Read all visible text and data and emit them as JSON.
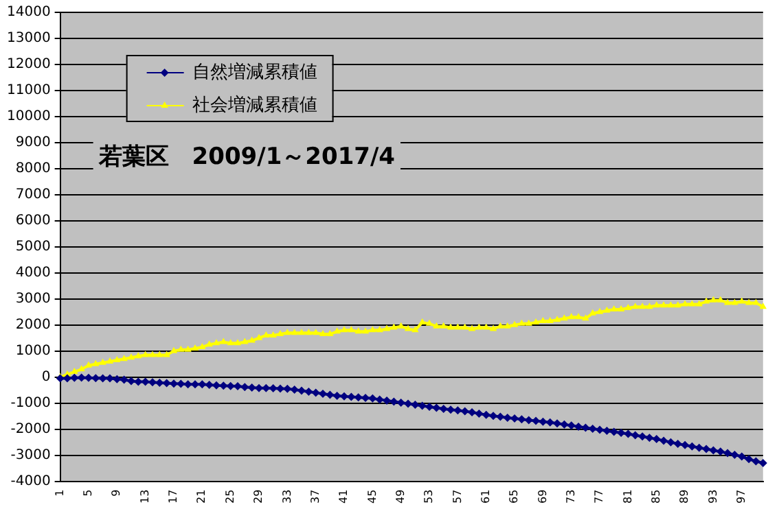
{
  "chart_data": {
    "type": "line",
    "annotations": [
      "若葉区　2009/1～2017/4"
    ],
    "categories": [
      "1",
      null,
      null,
      null,
      "5",
      null,
      null,
      null,
      "9",
      null,
      null,
      null,
      "13",
      null,
      null,
      null,
      "17",
      null,
      null,
      null,
      "21",
      null,
      null,
      null,
      "25",
      null,
      null,
      null,
      "29",
      null,
      null,
      null,
      "33",
      null,
      null,
      null,
      "37",
      null,
      null,
      null,
      "41",
      null,
      null,
      null,
      "45",
      null,
      null,
      null,
      "49",
      null,
      null,
      null,
      "53",
      null,
      null,
      null,
      "57",
      null,
      null,
      null,
      "61",
      null,
      null,
      null,
      "65",
      null,
      null,
      null,
      "69",
      null,
      null,
      null,
      "73",
      null,
      null,
      null,
      "77",
      null,
      null,
      null,
      "81",
      null,
      null,
      null,
      "85",
      null,
      null,
      null,
      "89",
      null,
      null,
      null,
      "93",
      null,
      null,
      null,
      "97",
      null,
      null,
      null
    ],
    "series": [
      {
        "name": "自然増減累積値",
        "color": "#000080",
        "marker": "diamond",
        "values": [
          -50,
          -50,
          -30,
          -20,
          -30,
          -40,
          -50,
          -50,
          -80,
          -100,
          -150,
          -180,
          -180,
          -200,
          -220,
          -230,
          -250,
          -260,
          -280,
          -280,
          -280,
          -300,
          -320,
          -330,
          -340,
          -350,
          -380,
          -400,
          -420,
          -420,
          -430,
          -440,
          -450,
          -480,
          -520,
          -560,
          -600,
          -640,
          -680,
          -720,
          -740,
          -760,
          -780,
          -800,
          -820,
          -860,
          -900,
          -940,
          -980,
          -1020,
          -1060,
          -1100,
          -1140,
          -1180,
          -1220,
          -1250,
          -1280,
          -1310,
          -1350,
          -1400,
          -1450,
          -1490,
          -1520,
          -1560,
          -1590,
          -1620,
          -1650,
          -1680,
          -1710,
          -1740,
          -1780,
          -1820,
          -1860,
          -1900,
          -1940,
          -1980,
          -2020,
          -2060,
          -2100,
          -2140,
          -2180,
          -2230,
          -2280,
          -2330,
          -2380,
          -2440,
          -2500,
          -2560,
          -2610,
          -2660,
          -2710,
          -2760,
          -2810,
          -2860,
          -2920,
          -2980,
          -3050,
          -3150,
          -3230,
          -3300
        ]
      },
      {
        "name": "社会増減累積値",
        "color": "#ffff00",
        "marker": "triangle",
        "values": [
          0,
          100,
          200,
          300,
          450,
          500,
          550,
          600,
          650,
          700,
          750,
          800,
          850,
          850,
          850,
          850,
          1000,
          1050,
          1050,
          1100,
          1150,
          1250,
          1300,
          1350,
          1300,
          1300,
          1350,
          1400,
          1500,
          1600,
          1600,
          1650,
          1700,
          1700,
          1700,
          1700,
          1700,
          1650,
          1650,
          1750,
          1800,
          1800,
          1750,
          1750,
          1800,
          1800,
          1850,
          1900,
          1950,
          1850,
          1800,
          2100,
          2050,
          1950,
          1950,
          1900,
          1900,
          1900,
          1850,
          1900,
          1900,
          1850,
          1950,
          1950,
          2000,
          2050,
          2050,
          2100,
          2150,
          2150,
          2200,
          2250,
          2300,
          2300,
          2250,
          2450,
          2500,
          2550,
          2600,
          2600,
          2650,
          2700,
          2700,
          2700,
          2750,
          2750,
          2750,
          2750,
          2800,
          2800,
          2800,
          2900,
          2950,
          2950,
          2850,
          2850,
          2900,
          2850,
          2850,
          2700
        ]
      }
    ],
    "ylim": [
      -4000,
      14000
    ],
    "yticks": [
      -4000,
      -3000,
      -2000,
      -1000,
      0,
      1000,
      2000,
      3000,
      4000,
      5000,
      6000,
      7000,
      8000,
      9000,
      10000,
      11000,
      12000,
      13000,
      14000
    ],
    "grid": "y",
    "legend": "top left",
    "line_style": "solid"
  }
}
